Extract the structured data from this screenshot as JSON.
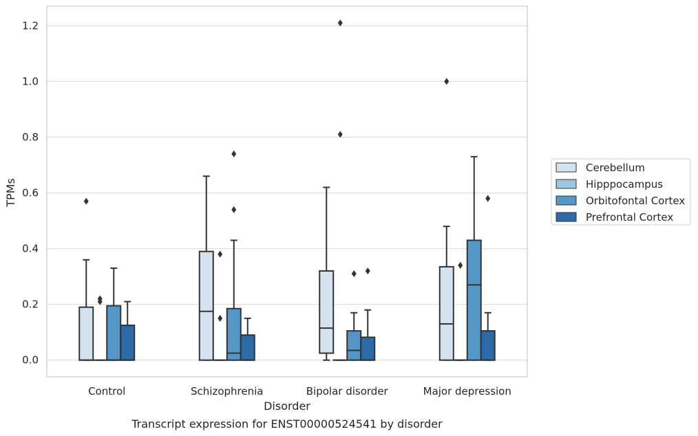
{
  "caption": "Transcript expression for ENST00000524541 by disorder",
  "chart_data": {
    "type": "box",
    "xlabel": "Disorder",
    "ylabel": "TPMs",
    "ylim": [
      -0.06,
      1.27
    ],
    "yticks": [
      0.0,
      0.2,
      0.4,
      0.6,
      0.8,
      1.0,
      1.2
    ],
    "ytick_labels": [
      "0.0",
      "0.2",
      "0.4",
      "0.6",
      "0.8",
      "1.0",
      "1.2"
    ],
    "grid": true,
    "legend_placement": "right",
    "categories": [
      "Control",
      "Schizophrenia",
      "Bipolar disorder",
      "Major depression"
    ],
    "series": [
      {
        "name": "Cerebellum",
        "color": "#d5e3f1",
        "boxes": [
          {
            "whislo": 0.0,
            "q1": 0.0,
            "med": 0.0,
            "q3": 0.19,
            "whishi": 0.36,
            "fliers": [
              0.57
            ]
          },
          {
            "whislo": 0.0,
            "q1": 0.0,
            "med": 0.175,
            "q3": 0.39,
            "whishi": 0.66,
            "fliers": []
          },
          {
            "whislo": 0.0,
            "q1": 0.025,
            "med": 0.115,
            "q3": 0.32,
            "whishi": 0.62,
            "fliers": []
          },
          {
            "whislo": 0.0,
            "q1": 0.0,
            "med": 0.13,
            "q3": 0.335,
            "whishi": 0.48,
            "fliers": [
              1.0
            ]
          }
        ]
      },
      {
        "name": "Hipppocampus",
        "color": "#9fc5e0",
        "boxes": [
          {
            "whislo": 0.0,
            "q1": 0.0,
            "med": 0.0,
            "q3": 0.0,
            "whishi": 0.0,
            "fliers": [
              0.21,
              0.22
            ]
          },
          {
            "whislo": 0.0,
            "q1": 0.0,
            "med": 0.0,
            "q3": 0.0,
            "whishi": 0.0,
            "fliers": [
              0.15,
              0.38
            ]
          },
          {
            "whislo": 0.0,
            "q1": 0.0,
            "med": 0.0,
            "q3": 0.0,
            "whishi": 0.0,
            "fliers": [
              0.81,
              1.21
            ]
          },
          {
            "whislo": 0.0,
            "q1": 0.0,
            "med": 0.0,
            "q3": 0.0,
            "whishi": 0.0,
            "fliers": [
              0.34
            ]
          }
        ]
      },
      {
        "name": "Orbitofontal Cortex",
        "color": "#5497c7",
        "boxes": [
          {
            "whislo": 0.0,
            "q1": 0.0,
            "med": 0.0,
            "q3": 0.195,
            "whishi": 0.33,
            "fliers": []
          },
          {
            "whislo": 0.0,
            "q1": 0.0,
            "med": 0.025,
            "q3": 0.185,
            "whishi": 0.43,
            "fliers": [
              0.54,
              0.74
            ]
          },
          {
            "whislo": 0.0,
            "q1": 0.0,
            "med": 0.035,
            "q3": 0.105,
            "whishi": 0.17,
            "fliers": [
              0.31
            ]
          },
          {
            "whislo": 0.0,
            "q1": 0.0,
            "med": 0.27,
            "q3": 0.43,
            "whishi": 0.73,
            "fliers": []
          }
        ]
      },
      {
        "name": "Prefrontal Cortex",
        "color": "#2c69a7",
        "boxes": [
          {
            "whislo": 0.0,
            "q1": 0.0,
            "med": 0.0,
            "q3": 0.125,
            "whishi": 0.21,
            "fliers": []
          },
          {
            "whislo": 0.0,
            "q1": 0.0,
            "med": 0.0,
            "q3": 0.09,
            "whishi": 0.15,
            "fliers": []
          },
          {
            "whislo": 0.0,
            "q1": 0.0,
            "med": 0.0,
            "q3": 0.082,
            "whishi": 0.18,
            "fliers": [
              0.32
            ]
          },
          {
            "whislo": 0.0,
            "q1": 0.0,
            "med": 0.0,
            "q3": 0.105,
            "whishi": 0.17,
            "fliers": [
              0.58
            ]
          }
        ]
      }
    ]
  }
}
